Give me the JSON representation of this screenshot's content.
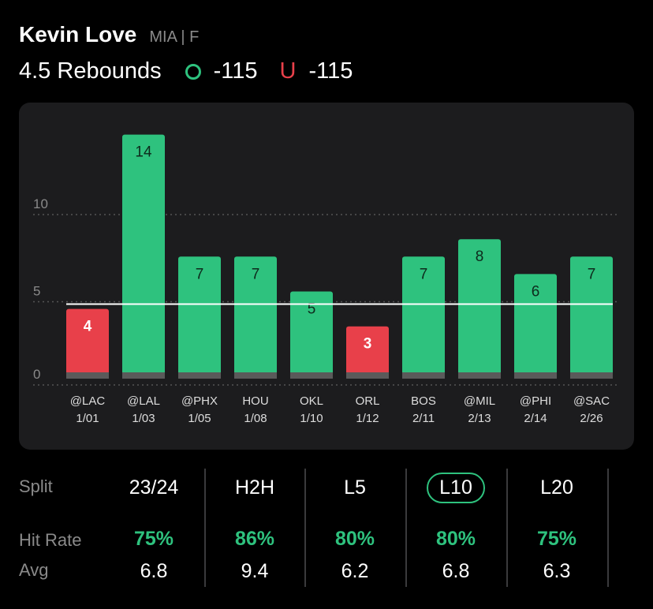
{
  "player": {
    "name": "Kevin Love",
    "team_pos": "MIA | F"
  },
  "line": {
    "label": "4.5 Rebounds",
    "over_odds": "-115",
    "under_symbol": "U",
    "under_odds": "-115"
  },
  "colors": {
    "over": "#2ec27e",
    "under": "#e8404a",
    "bar_base": "#5a5a5a"
  },
  "chart_data": {
    "type": "bar",
    "line_value": 4.5,
    "ylim": [
      0,
      14.5
    ],
    "y_ticks": [
      "0",
      "5",
      "10"
    ],
    "categories": [
      "@LAC",
      "@LAL",
      "@PHX",
      "HOU",
      "OKL",
      "ORL",
      "BOS",
      "@MIL",
      "@PHI",
      "@SAC"
    ],
    "dates": [
      "1/01",
      "1/03",
      "1/05",
      "1/08",
      "1/10",
      "1/12",
      "2/11",
      "2/13",
      "2/14",
      "2/26"
    ],
    "values": [
      4,
      14,
      7,
      7,
      5,
      3,
      7,
      8,
      6,
      7
    ],
    "value_labels": [
      "4",
      "14",
      "7",
      "7",
      "5",
      "3",
      "7",
      "8",
      "6",
      "7"
    ]
  },
  "stats": {
    "split_label": "Split",
    "hit_rate_label": "Hit Rate",
    "avg_label": "Avg",
    "splits": [
      {
        "name": "23/24",
        "hit_rate": "75%",
        "avg": "6.8"
      },
      {
        "name": "H2H",
        "hit_rate": "86%",
        "avg": "9.4"
      },
      {
        "name": "L5",
        "hit_rate": "80%",
        "avg": "6.2"
      },
      {
        "name": "L10",
        "hit_rate": "80%",
        "avg": "6.8"
      },
      {
        "name": "L20",
        "hit_rate": "75%",
        "avg": "6.3"
      }
    ],
    "active_split": "L10"
  }
}
